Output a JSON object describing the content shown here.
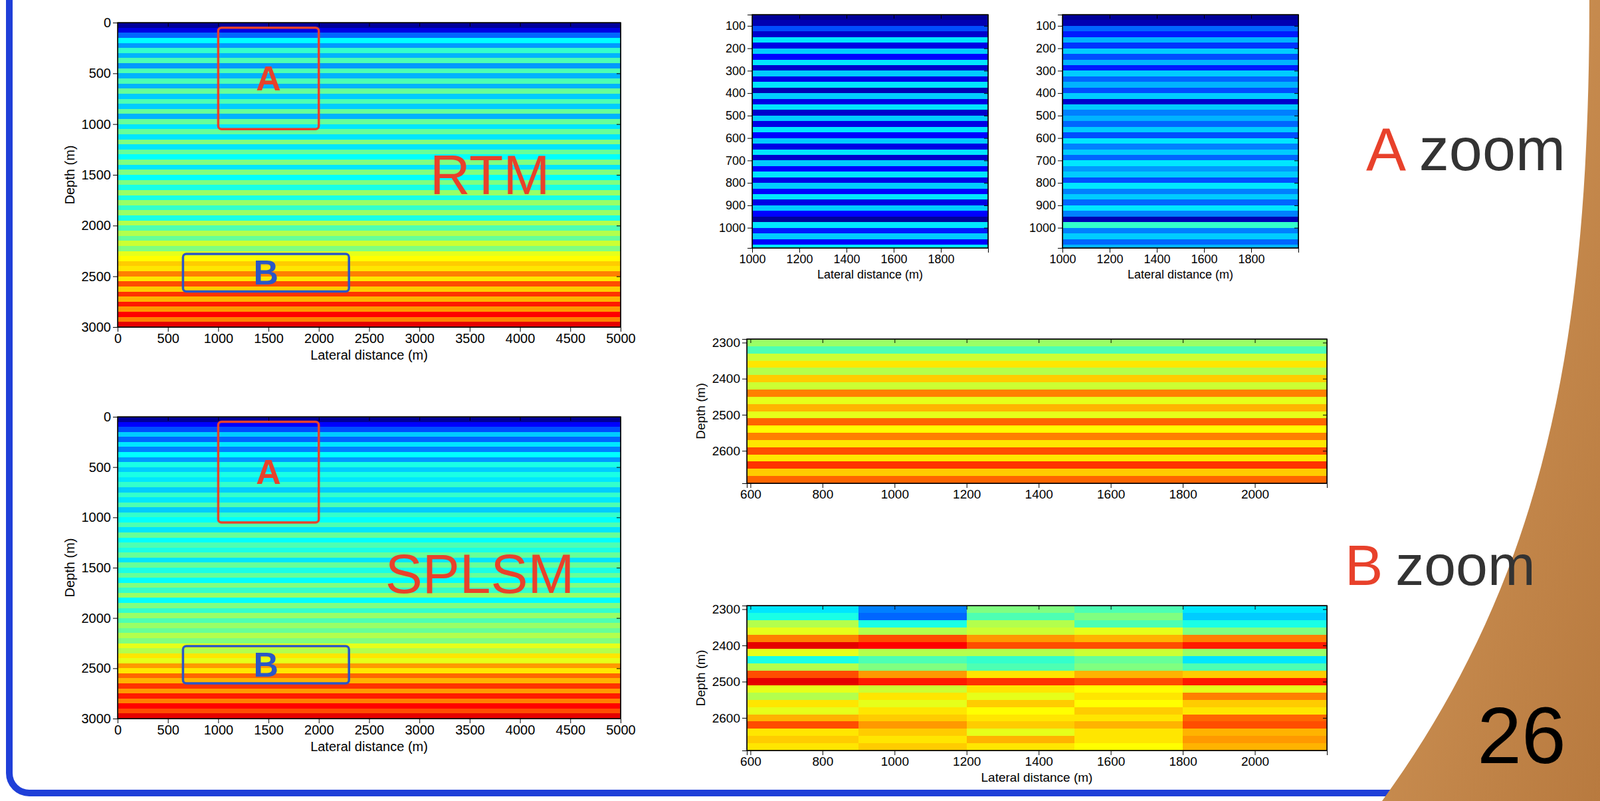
{
  "chart_data": [
    {
      "type": "heatmap",
      "title": "RTM",
      "xlabel": "Lateral distance (m)",
      "ylabel": "Depth (m)",
      "xlim": [
        0,
        5000
      ],
      "ylim": [
        0,
        3000
      ],
      "xticks": [
        0,
        500,
        1000,
        1500,
        2000,
        2500,
        3000,
        3500,
        4000,
        4500,
        5000
      ],
      "yticks": [
        0,
        500,
        1000,
        1500,
        2000,
        2500,
        3000
      ],
      "color_range": [
        -1,
        1
      ],
      "x_edges": [
        0,
        5000
      ],
      "y_edges": [
        0,
        50,
        100,
        150,
        200,
        250,
        300,
        350,
        400,
        450,
        500,
        550,
        600,
        650,
        700,
        750,
        800,
        850,
        900,
        950,
        1000,
        1050,
        1100,
        1150,
        1200,
        1250,
        1300,
        1350,
        1400,
        1450,
        1500,
        1550,
        1600,
        1650,
        1700,
        1750,
        1800,
        1850,
        1900,
        1950,
        2000,
        2050,
        2100,
        2150,
        2200,
        2250,
        2300,
        2350,
        2400,
        2450,
        2500,
        2550,
        2600,
        2650,
        2700,
        2750,
        2800,
        2850,
        2900,
        2950,
        3000
      ],
      "z": [
        [
          -0.95
        ],
        [
          -0.8
        ],
        [
          -0.55
        ],
        [
          -0.25
        ],
        [
          -0.45
        ],
        [
          -0.15
        ],
        [
          -0.4
        ],
        [
          -0.1
        ],
        [
          -0.45
        ],
        [
          -0.1
        ],
        [
          -0.4
        ],
        [
          -0.1
        ],
        [
          -0.4
        ],
        [
          -0.05
        ],
        [
          -0.35
        ],
        [
          -0.1
        ],
        [
          -0.35
        ],
        [
          -0.05
        ],
        [
          -0.4
        ],
        [
          -0.05
        ],
        [
          -0.3
        ],
        [
          -0.05
        ],
        [
          -0.3
        ],
        [
          0.0
        ],
        [
          -0.3
        ],
        [
          -0.05
        ],
        [
          -0.25
        ],
        [
          0.0
        ],
        [
          -0.3
        ],
        [
          0.0
        ],
        [
          -0.25
        ],
        [
          0.0
        ],
        [
          -0.2
        ],
        [
          0.05
        ],
        [
          -0.2
        ],
        [
          0.05
        ],
        [
          -0.15
        ],
        [
          0.05
        ],
        [
          -0.2
        ],
        [
          0.1
        ],
        [
          -0.1
        ],
        [
          0.1
        ],
        [
          -0.05
        ],
        [
          0.15
        ],
        [
          0.0
        ],
        [
          0.2
        ],
        [
          0.25
        ],
        [
          0.35
        ],
        [
          0.3
        ],
        [
          0.5
        ],
        [
          0.3
        ],
        [
          0.6
        ],
        [
          0.35
        ],
        [
          0.65
        ],
        [
          0.4
        ],
        [
          0.7
        ],
        [
          0.45
        ],
        [
          0.75
        ],
        [
          0.5
        ],
        [
          0.8
        ]
      ],
      "boxes": [
        {
          "label": "A",
          "x": [
            1000,
            2000
          ],
          "y": [
            50,
            1050
          ],
          "color": "#e8412b"
        },
        {
          "label": "B",
          "x": [
            650,
            2300
          ],
          "y": [
            2280,
            2650
          ],
          "color": "#2a57c6"
        }
      ]
    },
    {
      "type": "heatmap",
      "title": "SPLSM",
      "xlabel": "Lateral distance (m)",
      "ylabel": "Depth (m)",
      "xlim": [
        0,
        5000
      ],
      "ylim": [
        0,
        3000
      ],
      "xticks": [
        0,
        500,
        1000,
        1500,
        2000,
        2500,
        3000,
        3500,
        4000,
        4500,
        5000
      ],
      "yticks": [
        0,
        500,
        1000,
        1500,
        2000,
        2500,
        3000
      ],
      "color_range": [
        -1,
        1
      ],
      "x_edges": [
        0,
        5000
      ],
      "y_edges": [
        0,
        50,
        100,
        150,
        200,
        250,
        300,
        350,
        400,
        450,
        500,
        550,
        600,
        650,
        700,
        750,
        800,
        850,
        900,
        950,
        1000,
        1050,
        1100,
        1150,
        1200,
        1250,
        1300,
        1350,
        1400,
        1450,
        1500,
        1550,
        1600,
        1650,
        1700,
        1750,
        1800,
        1850,
        1900,
        1950,
        2000,
        2050,
        2100,
        2150,
        2200,
        2250,
        2300,
        2350,
        2400,
        2450,
        2500,
        2550,
        2600,
        2650,
        2700,
        2750,
        2800,
        2850,
        2900,
        2950,
        3000
      ],
      "z": [
        [
          -0.95
        ],
        [
          -0.75
        ],
        [
          -0.6
        ],
        [
          -0.35
        ],
        [
          -0.55
        ],
        [
          -0.3
        ],
        [
          -0.5
        ],
        [
          -0.25
        ],
        [
          -0.45
        ],
        [
          -0.2
        ],
        [
          -0.35
        ],
        [
          -0.2
        ],
        [
          -0.3
        ],
        [
          -0.15
        ],
        [
          -0.35
        ],
        [
          -0.15
        ],
        [
          -0.3
        ],
        [
          -0.1
        ],
        [
          -0.35
        ],
        [
          -0.15
        ],
        [
          -0.25
        ],
        [
          -0.1
        ],
        [
          -0.3
        ],
        [
          -0.05
        ],
        [
          -0.25
        ],
        [
          -0.1
        ],
        [
          -0.2
        ],
        [
          -0.05
        ],
        [
          -0.3
        ],
        [
          -0.05
        ],
        [
          -0.2
        ],
        [
          -0.05
        ],
        [
          -0.25
        ],
        [
          0.0
        ],
        [
          -0.15
        ],
        [
          0.05
        ],
        [
          -0.25
        ],
        [
          0.0
        ],
        [
          -0.15
        ],
        [
          0.05
        ],
        [
          -0.1
        ],
        [
          0.05
        ],
        [
          -0.05
        ],
        [
          0.1
        ],
        [
          0.0
        ],
        [
          0.2
        ],
        [
          0.1
        ],
        [
          0.3
        ],
        [
          0.2
        ],
        [
          0.45
        ],
        [
          0.3
        ],
        [
          0.55
        ],
        [
          0.4
        ],
        [
          0.65
        ],
        [
          0.45
        ],
        [
          0.7
        ],
        [
          0.5
        ],
        [
          0.75
        ],
        [
          0.6
        ],
        [
          0.8
        ]
      ],
      "boxes": [
        {
          "label": "A",
          "x": [
            1000,
            2000
          ],
          "y": [
            50,
            1050
          ],
          "color": "#e8412b"
        },
        {
          "label": "B",
          "x": [
            650,
            2300
          ],
          "y": [
            2280,
            2650
          ],
          "color": "#2a57c6"
        }
      ]
    },
    {
      "type": "heatmap",
      "xlabel": "Lateral distance (m)",
      "xlim": [
        1000,
        2000
      ],
      "ylim": [
        50,
        1090
      ],
      "xticks": [
        1000,
        1200,
        1400,
        1600,
        1800
      ],
      "yticks": [
        100,
        200,
        300,
        400,
        500,
        600,
        700,
        800,
        900,
        1000
      ],
      "color_range": [
        -1,
        1
      ],
      "x_edges": [
        1000,
        2000
      ],
      "y_edges": [
        50,
        75,
        100,
        125,
        150,
        175,
        200,
        225,
        250,
        275,
        300,
        325,
        350,
        375,
        400,
        425,
        450,
        475,
        500,
        525,
        550,
        575,
        600,
        625,
        650,
        675,
        700,
        725,
        750,
        775,
        800,
        825,
        850,
        875,
        900,
        925,
        950,
        975,
        1000,
        1025,
        1050,
        1075,
        1090
      ],
      "z": [
        [
          -0.95
        ],
        [
          -0.9
        ],
        [
          -0.6
        ],
        [
          -0.85
        ],
        [
          -0.3
        ],
        [
          -0.8
        ],
        [
          -0.35
        ],
        [
          -0.75
        ],
        [
          -0.3
        ],
        [
          -0.85
        ],
        [
          -0.35
        ],
        [
          -0.8
        ],
        [
          -0.3
        ],
        [
          -0.9
        ],
        [
          -0.35
        ],
        [
          -0.8
        ],
        [
          -0.3
        ],
        [
          -0.85
        ],
        [
          -0.35
        ],
        [
          -0.8
        ],
        [
          -0.3
        ],
        [
          -0.75
        ],
        [
          -0.35
        ],
        [
          -0.8
        ],
        [
          -0.3
        ],
        [
          -0.85
        ],
        [
          -0.35
        ],
        [
          -0.75
        ],
        [
          -0.3
        ],
        [
          -0.8
        ],
        [
          -0.35
        ],
        [
          -0.75
        ],
        [
          -0.3
        ],
        [
          -0.8
        ],
        [
          -0.35
        ],
        [
          -0.75
        ],
        [
          -0.95
        ],
        [
          -0.3
        ],
        [
          -0.7
        ],
        [
          -0.35
        ],
        [
          -0.75
        ],
        [
          -0.3
        ]
      ]
    },
    {
      "type": "heatmap",
      "xlabel": "Lateral distance (m)",
      "xlim": [
        1000,
        2000
      ],
      "ylim": [
        50,
        1090
      ],
      "xticks": [
        1000,
        1200,
        1400,
        1600,
        1800
      ],
      "yticks": [
        100,
        200,
        300,
        400,
        500,
        600,
        700,
        800,
        900,
        1000
      ],
      "color_range": [
        -1,
        1
      ],
      "x_edges": [
        1000,
        2000
      ],
      "y_edges": [
        50,
        75,
        100,
        125,
        150,
        175,
        200,
        225,
        250,
        275,
        300,
        325,
        350,
        375,
        400,
        425,
        450,
        475,
        500,
        525,
        550,
        575,
        600,
        625,
        650,
        675,
        700,
        725,
        750,
        775,
        800,
        825,
        850,
        875,
        900,
        925,
        950,
        975,
        1000,
        1025,
        1050,
        1075,
        1090
      ],
      "z": [
        [
          -0.95
        ],
        [
          -0.9
        ],
        [
          -0.55
        ],
        [
          -0.7
        ],
        [
          -0.4
        ],
        [
          -0.65
        ],
        [
          -0.35
        ],
        [
          -0.6
        ],
        [
          -0.4
        ],
        [
          -0.7
        ],
        [
          -0.35
        ],
        [
          -0.55
        ],
        [
          -0.4
        ],
        [
          -0.6
        ],
        [
          -0.35
        ],
        [
          -0.85
        ],
        [
          -0.35
        ],
        [
          -0.5
        ],
        [
          -0.4
        ],
        [
          -0.55
        ],
        [
          -0.35
        ],
        [
          -0.6
        ],
        [
          -0.3
        ],
        [
          -0.5
        ],
        [
          -0.35
        ],
        [
          -0.55
        ],
        [
          -0.3
        ],
        [
          -0.45
        ],
        [
          -0.35
        ],
        [
          -0.6
        ],
        [
          -0.3
        ],
        [
          -0.5
        ],
        [
          -0.35
        ],
        [
          -0.55
        ],
        [
          -0.3
        ],
        [
          -0.5
        ],
        [
          -0.9
        ],
        [
          -0.15
        ],
        [
          -0.5
        ],
        [
          -0.35
        ],
        [
          -0.55
        ],
        [
          -0.4
        ]
      ]
    },
    {
      "type": "heatmap",
      "ylabel": "Depth (m)",
      "xlim": [
        590,
        2200
      ],
      "ylim": [
        2290,
        2690
      ],
      "xticks": [
        600,
        800,
        1000,
        1200,
        1400,
        1600,
        1800,
        2000
      ],
      "yticks": [
        2300,
        2400,
        2500,
        2600
      ],
      "color_range": [
        -1,
        1
      ],
      "x_edges": [
        590,
        2200
      ],
      "y_edges": [
        2290,
        2310,
        2330,
        2350,
        2370,
        2390,
        2410,
        2430,
        2450,
        2470,
        2490,
        2510,
        2530,
        2550,
        2570,
        2590,
        2610,
        2630,
        2650,
        2670,
        2690
      ],
      "z": [
        [
          0.05
        ],
        [
          -0.1
        ],
        [
          0.15
        ],
        [
          0.3
        ],
        [
          0.1
        ],
        [
          0.35
        ],
        [
          0.15
        ],
        [
          0.5
        ],
        [
          0.2
        ],
        [
          0.4
        ],
        [
          0.2
        ],
        [
          0.55
        ],
        [
          0.25
        ],
        [
          0.5
        ],
        [
          0.3
        ],
        [
          0.6
        ],
        [
          0.3
        ],
        [
          0.65
        ],
        [
          0.35
        ],
        [
          0.55
        ]
      ]
    },
    {
      "type": "heatmap",
      "xlabel": "Lateral distance (m)",
      "ylabel": "Depth (m)",
      "xlim": [
        590,
        2200
      ],
      "ylim": [
        2290,
        2690
      ],
      "xticks": [
        600,
        800,
        1000,
        1200,
        1400,
        1600,
        1800,
        2000
      ],
      "yticks": [
        2300,
        2400,
        2500,
        2600
      ],
      "color_range": [
        -1,
        1
      ],
      "x_edges": [
        590,
        900,
        1200,
        1500,
        1800,
        2200
      ],
      "y_edges": [
        2290,
        2310,
        2330,
        2350,
        2370,
        2390,
        2410,
        2430,
        2450,
        2470,
        2490,
        2510,
        2530,
        2550,
        2570,
        2590,
        2610,
        2630,
        2650,
        2670,
        2690
      ],
      "z": [
        [
          -0.3,
          -0.5,
          0.0,
          -0.1,
          -0.3
        ],
        [
          -0.2,
          -0.55,
          -0.1,
          0.0,
          -0.35
        ],
        [
          0.1,
          -0.2,
          0.1,
          -0.1,
          -0.2
        ],
        [
          0.2,
          0.1,
          0.15,
          0.2,
          0.0
        ],
        [
          0.5,
          0.6,
          0.45,
          0.4,
          0.5
        ],
        [
          0.8,
          0.75,
          0.6,
          0.6,
          0.7
        ],
        [
          0.2,
          0.1,
          0.1,
          0.15,
          0.05
        ],
        [
          -0.2,
          -0.1,
          -0.15,
          -0.05,
          -0.3
        ],
        [
          0.1,
          0.0,
          -0.1,
          0.0,
          -0.1
        ],
        [
          0.6,
          0.45,
          0.3,
          0.4,
          0.35
        ],
        [
          0.8,
          0.7,
          0.65,
          0.6,
          0.7
        ],
        [
          0.2,
          0.15,
          0.3,
          0.25,
          0.2
        ],
        [
          0.1,
          0.3,
          0.2,
          0.3,
          0.5
        ],
        [
          0.3,
          0.2,
          0.35,
          0.25,
          0.35
        ],
        [
          0.2,
          0.3,
          0.25,
          0.35,
          0.3
        ],
        [
          0.4,
          0.35,
          0.3,
          0.3,
          0.55
        ],
        [
          0.6,
          0.45,
          0.35,
          0.4,
          0.6
        ],
        [
          0.3,
          0.35,
          0.2,
          0.3,
          0.4
        ],
        [
          0.35,
          0.3,
          0.4,
          0.3,
          0.45
        ],
        [
          0.3,
          0.35,
          0.3,
          0.25,
          0.4
        ]
      ]
    }
  ],
  "zoom_labels": [
    {
      "letter": "A",
      "text": "zoom"
    },
    {
      "letter": "B",
      "text": "zoom"
    }
  ],
  "page_number": 26
}
